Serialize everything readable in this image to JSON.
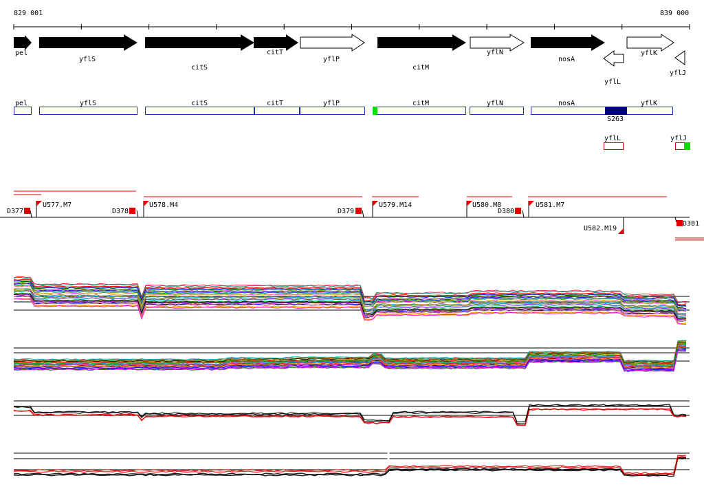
{
  "coords": {
    "start": "829 001",
    "end": "839 000"
  },
  "colors": {
    "gene_fill": "#000000",
    "gene_box": "#1f2fb5",
    "marker_red": "#ff0000",
    "marker_green": "#00dd00",
    "block_blue": "#00007f",
    "track_black": "#000000",
    "track_red": "#e00000"
  },
  "genes": [
    {
      "name": "pel",
      "strand": "+",
      "filled": true
    },
    {
      "name": "yflS",
      "strand": "+",
      "filled": true
    },
    {
      "name": "citS",
      "strand": "+",
      "filled": true
    },
    {
      "name": "citT",
      "strand": "+",
      "filled": true
    },
    {
      "name": "yflP",
      "strand": "+",
      "filled": false
    },
    {
      "name": "citM",
      "strand": "+",
      "filled": true
    },
    {
      "name": "yflN",
      "strand": "+",
      "filled": false
    },
    {
      "name": "nosA",
      "strand": "+",
      "filled": true
    },
    {
      "name": "yflL",
      "strand": "-",
      "filled": false
    },
    {
      "name": "yflK",
      "strand": "+",
      "filled": false
    },
    {
      "name": "yflJ",
      "strand": "-",
      "filled": false
    }
  ],
  "gene_boxes": {
    "row1": [
      "pel",
      "yflS",
      "citS",
      "citT",
      "yflP",
      "citM",
      "yflN",
      "nosA",
      "yflK"
    ],
    "row2": [
      "yflL",
      "yflJ"
    ],
    "block_label": "S263"
  },
  "markers_top": [
    "U577.M7",
    "U578.M4",
    "U579.M14",
    "U580.M8",
    "U581.M7"
  ],
  "markers_down": [
    "D377",
    "D378",
    "D379",
    "D380"
  ],
  "markers_bottom": [
    "U582.M19",
    "D381"
  ]
}
